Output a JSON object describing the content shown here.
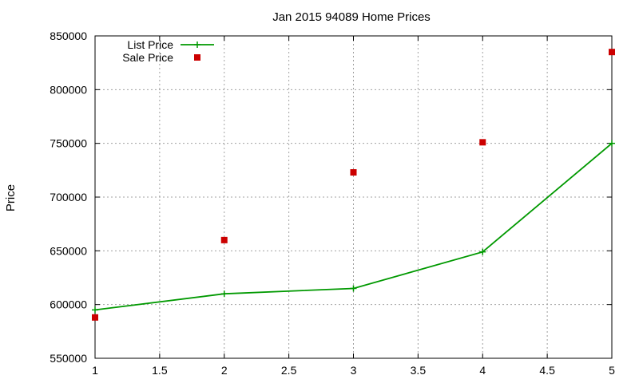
{
  "chart_data": {
    "type": "line",
    "title": "Jan 2015 94089 Home Prices",
    "xlabel": "",
    "ylabel": "Price",
    "xlim": [
      1,
      5
    ],
    "ylim": [
      550000,
      850000
    ],
    "xticks": [
      1,
      1.5,
      2,
      2.5,
      3,
      3.5,
      4,
      4.5,
      5
    ],
    "yticks": [
      550000,
      600000,
      650000,
      700000,
      750000,
      800000,
      850000
    ],
    "grid": true,
    "legend_position": "top-left",
    "series": [
      {
        "name": "List Price",
        "kind": "line+markers",
        "marker": "plus",
        "color": "#009900",
        "x": [
          1,
          2,
          3,
          4,
          5
        ],
        "y": [
          595000,
          610000,
          615000,
          649000,
          750000
        ]
      },
      {
        "name": "Sale Price",
        "kind": "points",
        "marker": "square",
        "color": "#cc0000",
        "x": [
          1,
          2,
          3,
          4,
          5
        ],
        "y": [
          588000,
          660000,
          723000,
          751000,
          835000
        ]
      }
    ]
  }
}
